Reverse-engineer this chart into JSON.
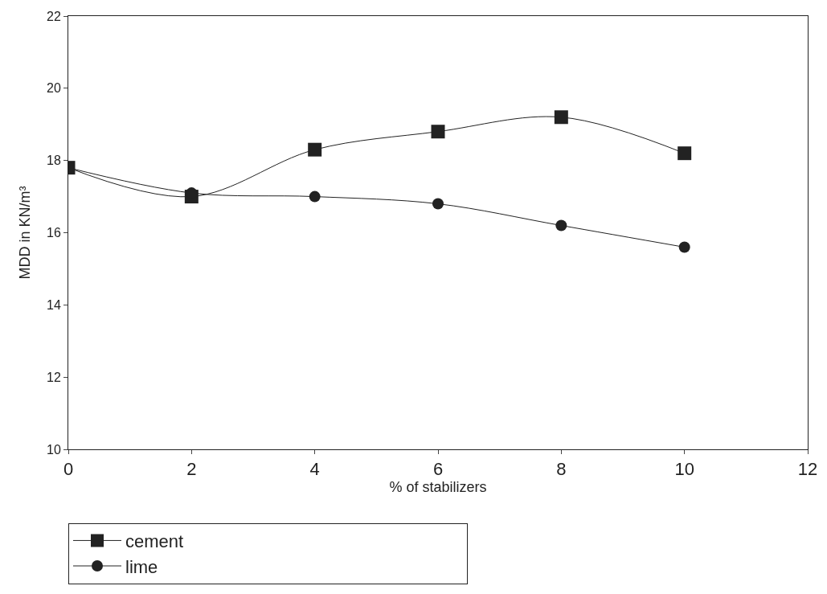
{
  "chart_data": {
    "type": "line",
    "xlabel": "% of stabilizers",
    "ylabel": "MDD in KN/m³",
    "x": [
      0,
      2,
      4,
      6,
      8,
      10
    ],
    "series": [
      {
        "name": "cement",
        "color": "#222222",
        "marker": "square",
        "values": [
          17.8,
          17.0,
          18.3,
          18.8,
          19.2,
          18.2
        ]
      },
      {
        "name": "lime",
        "color": "#222222",
        "marker": "circle",
        "values": [
          17.8,
          17.1,
          17.0,
          16.8,
          16.2,
          15.6
        ]
      }
    ],
    "xlim": [
      0,
      12
    ],
    "xticks": [
      0,
      2,
      4,
      6,
      8,
      10,
      12
    ],
    "ylim": [
      10,
      22
    ],
    "yticks": [
      10,
      12,
      14,
      16,
      18,
      20,
      22
    ],
    "grid": false,
    "legend": "bottom",
    "line_style": "solid"
  }
}
